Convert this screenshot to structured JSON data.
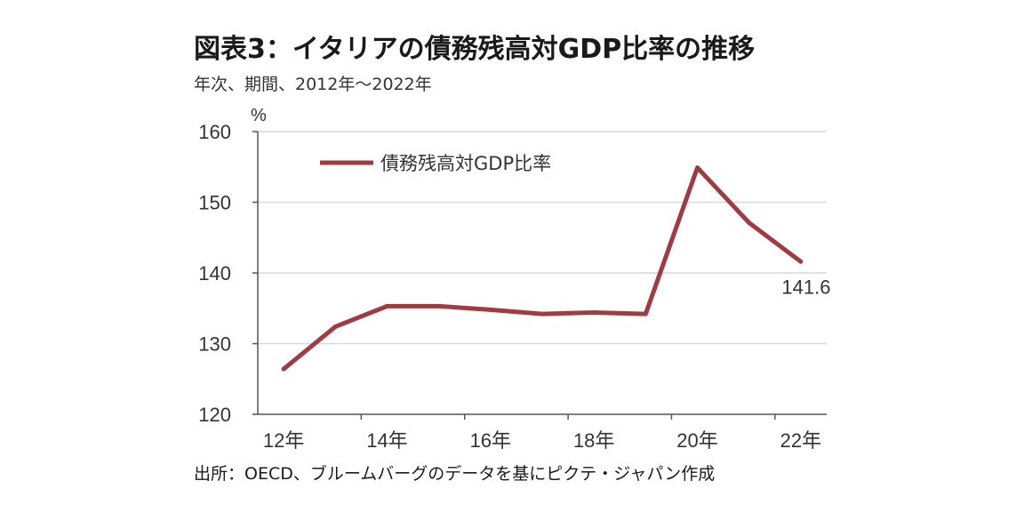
{
  "title": "図表3：イタリアの債務残高対GDP比率の推移",
  "subtitle": "年次、期間、2012年～2022年",
  "source": "出所：OECD、ブルームバーグのデータを基にピクテ・ジャパン作成",
  "chart_data": {
    "type": "line",
    "ylabel": "%",
    "ylim": [
      120,
      160
    ],
    "yticks": [
      120,
      130,
      140,
      150,
      160
    ],
    "grid": true,
    "legend_position": "top-left",
    "x": [
      "2012",
      "2013",
      "2014",
      "2015",
      "2016",
      "2017",
      "2018",
      "2019",
      "2020",
      "2021",
      "2022"
    ],
    "xtick_labels": [
      "12年",
      "",
      "14年",
      "",
      "16年",
      "",
      "18年",
      "",
      "20年",
      "",
      "22年"
    ],
    "series": [
      {
        "name": "債務残高対GDP比率",
        "color": "#9e3c41",
        "values": [
          126.4,
          132.4,
          135.3,
          135.3,
          134.8,
          134.2,
          134.4,
          134.2,
          154.9,
          147.1,
          141.6
        ]
      }
    ],
    "annotations": [
      {
        "text": "141.6",
        "x": "2022"
      }
    ]
  }
}
